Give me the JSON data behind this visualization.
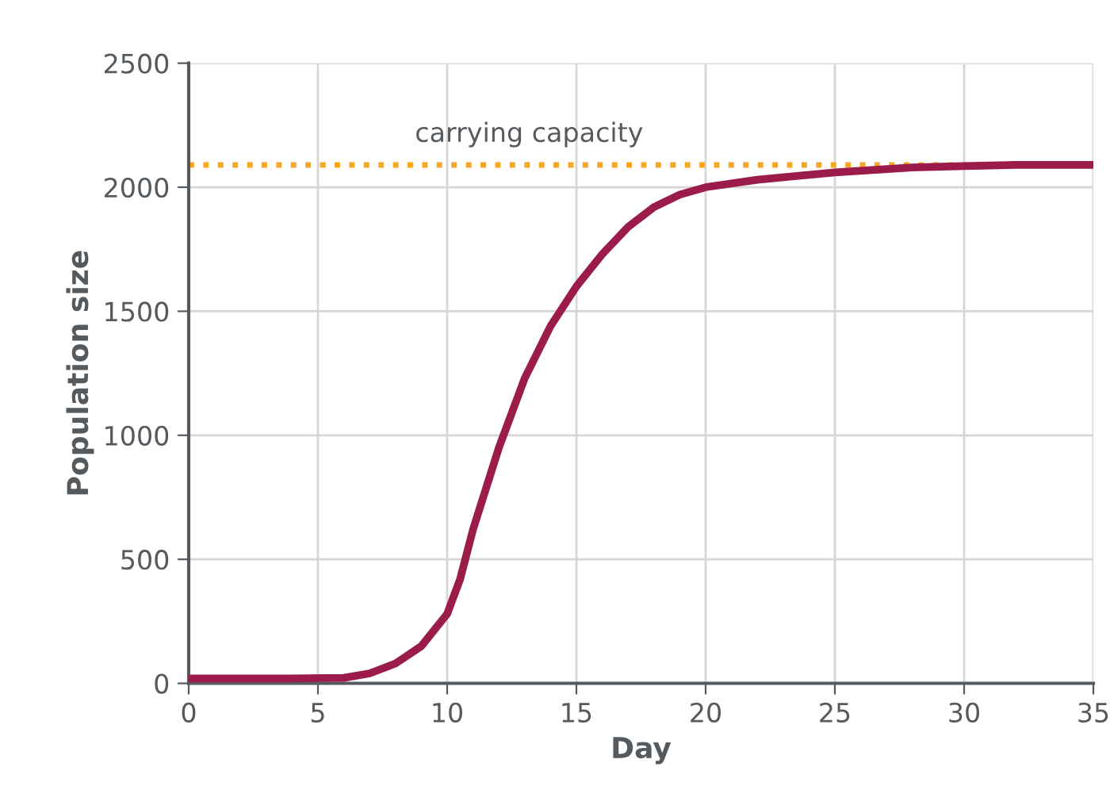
{
  "chart_data": {
    "type": "line",
    "xlabel": "Day",
    "ylabel": "Population size",
    "x": [
      0,
      2,
      4,
      6,
      7,
      8,
      9,
      10,
      10.5,
      11,
      12,
      13,
      14,
      15,
      16,
      17,
      18,
      19,
      20,
      22,
      25,
      28,
      30,
      32,
      35
    ],
    "series": [
      {
        "color": "#9b1b4b",
        "values": [
          20,
          20,
          20,
          22,
          40,
          80,
          150,
          280,
          420,
          620,
          950,
          1230,
          1440,
          1600,
          1730,
          1840,
          1920,
          1970,
          2000,
          2030,
          2060,
          2080,
          2085,
          2090,
          2090
        ]
      }
    ],
    "xlim": [
      0,
      35
    ],
    "xticks": [
      0,
      5,
      10,
      15,
      20,
      25,
      30,
      35
    ],
    "ylim": [
      0,
      2500
    ],
    "yticks": [
      0,
      500,
      1000,
      1500,
      2000,
      2500
    ],
    "ref_lines": [
      {
        "axis": "y",
        "value": 2090,
        "label": "carrying capacity",
        "color": "#f5a623",
        "line_style": "dotted"
      }
    ],
    "grid": true,
    "line_style": "solid",
    "marker": "none"
  }
}
